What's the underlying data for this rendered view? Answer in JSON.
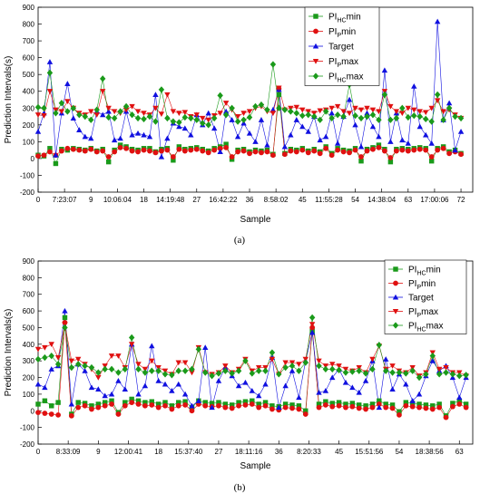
{
  "chart_data": [
    {
      "panel": "(a)",
      "type": "line",
      "xlabel": "Sample",
      "ylabel": "Prediction Intervals(s)",
      "ylim": [
        -200,
        900
      ],
      "yticks": [
        -200,
        -100,
        0,
        100,
        200,
        300,
        400,
        500,
        600,
        700,
        800,
        900
      ],
      "xlim": [
        0,
        74
      ],
      "xticks": [
        {
          "x": 0,
          "label": "0"
        },
        {
          "x": 4.5,
          "label": "7:23:07"
        },
        {
          "x": 9,
          "label": "9"
        },
        {
          "x": 13.5,
          "label": "10:06:04"
        },
        {
          "x": 18,
          "label": "18"
        },
        {
          "x": 22.5,
          "label": "14:19:48"
        },
        {
          "x": 27,
          "label": "27"
        },
        {
          "x": 31.5,
          "label": "16:42:22"
        },
        {
          "x": 36,
          "label": "36"
        },
        {
          "x": 40.5,
          "label": "8:58:02"
        },
        {
          "x": 45,
          "label": "45"
        },
        {
          "x": 49.5,
          "label": "11:55:28"
        },
        {
          "x": 54,
          "label": "54"
        },
        {
          "x": 58.5,
          "label": "14:38:04"
        },
        {
          "x": 63,
          "label": "63"
        },
        {
          "x": 67.5,
          "label": "17:00:06"
        },
        {
          "x": 72,
          "label": "72"
        }
      ],
      "legend_position": "top-right",
      "series": [
        {
          "name": "PIHCmin",
          "label_main": "PI",
          "label_sub": "HC",
          "label_tail": "min",
          "color": "#1a9a1a",
          "marker": "square",
          "values": [
            20,
            15,
            60,
            -30,
            55,
            50,
            60,
            55,
            50,
            60,
            45,
            55,
            -20,
            50,
            80,
            70,
            55,
            50,
            60,
            60,
            40,
            55,
            60,
            -10,
            70,
            55,
            60,
            65,
            55,
            45,
            60,
            70,
            85,
            -5,
            50,
            55,
            40,
            50,
            45,
            50,
            25,
            380,
            30,
            55,
            50,
            60,
            45,
            55,
            40,
            70,
            30,
            60,
            50,
            45,
            60,
            -15,
            55,
            65,
            80,
            55,
            -20,
            55,
            60,
            55,
            60,
            65,
            60,
            -15,
            60,
            70,
            40,
            50,
            30
          ]
        },
        {
          "name": "PIPmin",
          "label_main": "PI",
          "label_sub": "P",
          "label_tail": "min",
          "color": "#e01010",
          "marker": "circle",
          "values": [
            15,
            20,
            40,
            20,
            45,
            60,
            55,
            50,
            45,
            55,
            40,
            45,
            10,
            40,
            65,
            60,
            45,
            40,
            50,
            45,
            35,
            45,
            50,
            10,
            55,
            45,
            50,
            55,
            45,
            35,
            50,
            60,
            65,
            10,
            40,
            45,
            30,
            40,
            35,
            40,
            20,
            415,
            25,
            45,
            40,
            50,
            35,
            45,
            30,
            60,
            20,
            50,
            40,
            35,
            50,
            10,
            45,
            55,
            65,
            45,
            5,
            45,
            50,
            45,
            50,
            55,
            50,
            10,
            50,
            60,
            30,
            40,
            25
          ]
        },
        {
          "name": "Target",
          "label_main": "Target",
          "label_sub": "",
          "label_tail": "",
          "color": "#1010e0",
          "marker": "triangle-up",
          "values": [
            160,
            270,
            575,
            20,
            270,
            445,
            240,
            170,
            130,
            120,
            280,
            260,
            280,
            110,
            120,
            280,
            140,
            150,
            140,
            130,
            380,
            10,
            120,
            210,
            190,
            180,
            140,
            260,
            200,
            270,
            180,
            40,
            280,
            230,
            130,
            210,
            150,
            100,
            230,
            80,
            290,
            410,
            70,
            140,
            230,
            190,
            160,
            250,
            110,
            130,
            270,
            90,
            250,
            350,
            200,
            70,
            270,
            190,
            130,
            525,
            100,
            270,
            110,
            90,
            430,
            190,
            140,
            90,
            815,
            230,
            330,
            50,
            160
          ]
        },
        {
          "name": "PIPmax",
          "label_main": "PI",
          "label_sub": "P",
          "label_tail": "max",
          "color": "#e01010",
          "marker": "triangle-down",
          "values": [
            260,
            255,
            400,
            290,
            280,
            340,
            300,
            270,
            260,
            280,
            260,
            400,
            300,
            280,
            270,
            290,
            310,
            280,
            270,
            260,
            300,
            265,
            380,
            280,
            270,
            275,
            250,
            260,
            240,
            230,
            255,
            270,
            330,
            290,
            250,
            270,
            280,
            300,
            310,
            280,
            270,
            420,
            290,
            300,
            305,
            290,
            280,
            270,
            285,
            290,
            300,
            310,
            280,
            270,
            300,
            290,
            300,
            290,
            280,
            400,
            310,
            280,
            270,
            300,
            290,
            280,
            275,
            300,
            345,
            280,
            290,
            260,
            240
          ]
        },
        {
          "name": "PIHCmax",
          "label_main": "PI",
          "label_sub": "HC",
          "label_tail": "max",
          "color": "#1a9a1a",
          "marker": "diamond",
          "values": [
            305,
            300,
            510,
            270,
            330,
            280,
            300,
            260,
            250,
            230,
            290,
            475,
            245,
            240,
            280,
            310,
            260,
            240,
            235,
            250,
            220,
            410,
            240,
            220,
            215,
            245,
            240,
            230,
            210,
            200,
            240,
            375,
            260,
            300,
            220,
            230,
            245,
            310,
            320,
            290,
            560,
            300,
            290,
            280,
            270,
            255,
            260,
            250,
            230,
            280,
            240,
            260,
            250,
            440,
            255,
            240,
            250,
            260,
            230,
            380,
            230,
            240,
            300,
            245,
            255,
            250,
            235,
            220,
            380,
            230,
            300,
            250,
            240
          ]
        }
      ]
    },
    {
      "panel": "(b)",
      "type": "line",
      "xlabel": "Sample",
      "ylabel": "Prediction Intervals(s)",
      "ylim": [
        -200,
        900
      ],
      "yticks": [
        -200,
        -100,
        0,
        100,
        200,
        300,
        400,
        500,
        600,
        700,
        800,
        900
      ],
      "xlim": [
        0,
        65
      ],
      "xticks": [
        {
          "x": 0,
          "label": "0"
        },
        {
          "x": 4.5,
          "label": "8:33:09"
        },
        {
          "x": 9,
          "label": "9"
        },
        {
          "x": 13.5,
          "label": "12:00:41"
        },
        {
          "x": 18,
          "label": "18"
        },
        {
          "x": 22.5,
          "label": "15:37:40"
        },
        {
          "x": 27,
          "label": "27"
        },
        {
          "x": 31.5,
          "label": "18:11:16"
        },
        {
          "x": 36,
          "label": "36"
        },
        {
          "x": 40.5,
          "label": "8:20:33"
        },
        {
          "x": 45,
          "label": "45"
        },
        {
          "x": 49.5,
          "label": "15:51:56"
        },
        {
          "x": 54,
          "label": "54"
        },
        {
          "x": 58.5,
          "label": "18:38:56"
        },
        {
          "x": 63,
          "label": "63"
        }
      ],
      "legend_position": "top-right",
      "series": [
        {
          "name": "PIHCmin",
          "label_main": "PI",
          "label_sub": "HC",
          "label_tail": "min",
          "color": "#1a9a1a",
          "marker": "square",
          "values": [
            40,
            60,
            30,
            50,
            560,
            -20,
            50,
            45,
            30,
            40,
            50,
            60,
            -10,
            50,
            70,
            60,
            50,
            55,
            40,
            50,
            30,
            50,
            55,
            20,
            60,
            50,
            45,
            50,
            40,
            35,
            50,
            55,
            60,
            40,
            50,
            30,
            25,
            40,
            35,
            30,
            0,
            480,
            40,
            55,
            45,
            50,
            40,
            45,
            35,
            30,
            40,
            60,
            40,
            35,
            -5,
            50,
            45,
            40,
            35,
            30,
            40,
            -30,
            45,
            60,
            40
          ]
        },
        {
          "name": "PIPmin",
          "label_main": "PI",
          "label_sub": "P",
          "label_tail": "min",
          "color": "#e01010",
          "marker": "circle",
          "values": [
            -10,
            -15,
            -20,
            -25,
            530,
            -30,
            20,
            30,
            10,
            20,
            30,
            40,
            -20,
            30,
            50,
            40,
            30,
            35,
            20,
            30,
            10,
            30,
            35,
            0,
            40,
            30,
            25,
            30,
            20,
            15,
            30,
            35,
            40,
            20,
            30,
            10,
            5,
            20,
            15,
            10,
            -20,
            500,
            20,
            35,
            25,
            30,
            20,
            25,
            15,
            10,
            20,
            40,
            20,
            15,
            -25,
            30,
            25,
            20,
            15,
            10,
            20,
            -40,
            25,
            40,
            20
          ]
        },
        {
          "name": "Target",
          "label_main": "Target",
          "label_sub": "",
          "label_tail": "",
          "color": "#1010e0",
          "marker": "triangle-up",
          "values": [
            160,
            140,
            250,
            270,
            600,
            40,
            280,
            240,
            140,
            130,
            90,
            100,
            180,
            130,
            400,
            100,
            150,
            390,
            180,
            160,
            120,
            160,
            100,
            30,
            60,
            380,
            20,
            180,
            260,
            210,
            150,
            170,
            120,
            90,
            160,
            320,
            20,
            150,
            240,
            80,
            300,
            470,
            110,
            120,
            200,
            250,
            170,
            140,
            110,
            180,
            300,
            20,
            310,
            130,
            220,
            160,
            60,
            100,
            210,
            300,
            240,
            270,
            200,
            80,
            200
          ]
        },
        {
          "name": "PIPmax",
          "label_main": "PI",
          "label_sub": "P",
          "label_tail": "max",
          "color": "#e01010",
          "marker": "triangle-down",
          "values": [
            370,
            380,
            400,
            320,
            520,
            300,
            310,
            280,
            250,
            200,
            270,
            330,
            330,
            260,
            400,
            280,
            250,
            300,
            260,
            240,
            220,
            290,
            290,
            230,
            380,
            230,
            220,
            230,
            270,
            230,
            250,
            310,
            240,
            260,
            260,
            310,
            220,
            290,
            290,
            280,
            310,
            520,
            300,
            270,
            280,
            270,
            250,
            240,
            260,
            230,
            310,
            390,
            250,
            270,
            240,
            230,
            260,
            210,
            230,
            350,
            250,
            260,
            230,
            230,
            210
          ]
        },
        {
          "name": "PIHCmax",
          "label_main": "PI",
          "label_sub": "HC",
          "label_tail": "max",
          "color": "#1a9a1a",
          "marker": "diamond",
          "values": [
            310,
            320,
            330,
            280,
            500,
            260,
            280,
            270,
            260,
            230,
            250,
            250,
            230,
            250,
            440,
            250,
            230,
            240,
            240,
            220,
            215,
            240,
            240,
            250,
            370,
            230,
            210,
            225,
            240,
            225,
            240,
            300,
            225,
            240,
            240,
            350,
            220,
            260,
            270,
            240,
            290,
            560,
            270,
            250,
            250,
            245,
            230,
            235,
            240,
            225,
            250,
            395,
            240,
            230,
            230,
            225,
            240,
            200,
            220,
            330,
            220,
            230,
            220,
            210,
            215
          ]
        }
      ]
    }
  ]
}
